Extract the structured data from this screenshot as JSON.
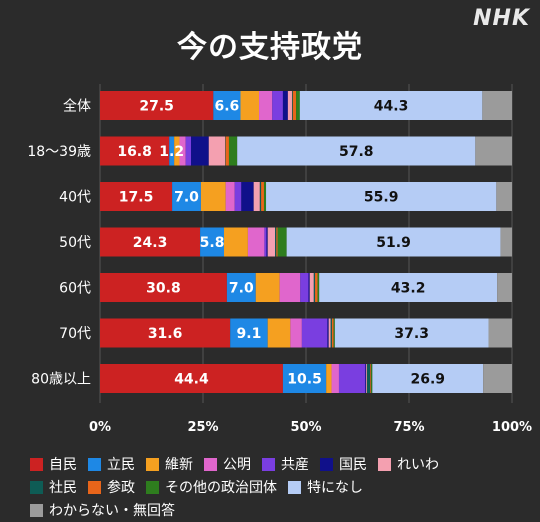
{
  "title": "今の支持政党",
  "logo": "NHK",
  "chart_data": {
    "type": "bar",
    "orientation": "horizontal",
    "stacked": true,
    "title": "今の支持政党",
    "categories": [
      "全体",
      "18～39歳",
      "40代",
      "50代",
      "60代",
      "70代",
      "80歳以上"
    ],
    "xlim": [
      0,
      100
    ],
    "x_ticks": [
      "0%",
      "25%",
      "50%",
      "75%",
      "100%"
    ],
    "grid": true,
    "legend_position": "bottom",
    "series": [
      {
        "name": "自民",
        "color": "#cc2222",
        "values": [
          27.5,
          16.8,
          17.5,
          24.3,
          30.8,
          31.6,
          44.4
        ],
        "labels": [
          "27.5",
          "16.8",
          "17.5",
          "24.3",
          "30.8",
          "31.6",
          "44.4"
        ]
      },
      {
        "name": "立民",
        "color": "#1e88e5",
        "values": [
          6.6,
          1.2,
          7.0,
          5.8,
          7.0,
          9.1,
          10.5
        ],
        "labels": [
          "6.6",
          "1.2",
          "7.0",
          "5.8",
          "7.0",
          "9.1",
          "10.5"
        ]
      },
      {
        "name": "維新",
        "color": "#f5a020",
        "values": [
          4.5,
          1.3,
          6.0,
          5.8,
          5.8,
          5.5,
          1.3
        ],
        "labels": [
          "",
          "",
          "",
          "",
          "",
          "",
          ""
        ]
      },
      {
        "name": "公明",
        "color": "#e066cc",
        "values": [
          3.2,
          1.5,
          2.2,
          4.0,
          5.0,
          2.8,
          1.8
        ],
        "labels": [
          "",
          "",
          "",
          "",
          "",
          "",
          ""
        ]
      },
      {
        "name": "共産",
        "color": "#7a3ee0",
        "values": [
          2.6,
          1.3,
          1.6,
          0.5,
          2.0,
          6.2,
          6.4
        ],
        "labels": [
          "",
          "",
          "",
          "",
          "",
          "",
          ""
        ]
      },
      {
        "name": "国民",
        "color": "#10108a",
        "values": [
          1.2,
          4.3,
          3.0,
          0.3,
          0.3,
          0.3,
          0.2
        ],
        "labels": [
          "",
          "",
          "",
          "",
          "",
          "",
          ""
        ]
      },
      {
        "name": "れいわ",
        "color": "#f4a0b0",
        "values": [
          1.0,
          4.0,
          1.5,
          1.8,
          1.0,
          0.5,
          0.2
        ],
        "labels": [
          "",
          "",
          "",
          "",
          "",
          "",
          ""
        ]
      },
      {
        "name": "社民",
        "color": "#0e5c55",
        "values": [
          0.2,
          0.1,
          0.3,
          0.3,
          0.3,
          0.3,
          0.8
        ],
        "labels": [
          "",
          "",
          "",
          "",
          "",
          "",
          ""
        ]
      },
      {
        "name": "参政",
        "color": "#e8651a",
        "values": [
          0.8,
          0.8,
          0.7,
          0.3,
          0.6,
          0.4,
          0.2
        ],
        "labels": [
          "",
          "",
          "",
          "",
          "",
          "",
          ""
        ]
      },
      {
        "name": "その他の政治団体",
        "color": "#2e7d1e",
        "values": [
          0.9,
          2.0,
          0.5,
          2.2,
          0.4,
          0.3,
          0.3
        ],
        "labels": [
          "",
          "",
          "",
          "",
          "",
          "",
          ""
        ]
      },
      {
        "name": "特になし",
        "color": "#b5ccf5",
        "values": [
          44.3,
          57.8,
          55.9,
          51.9,
          43.2,
          37.3,
          26.9
        ],
        "labels": [
          "44.3",
          "57.8",
          "55.9",
          "51.9",
          "43.2",
          "37.3",
          "26.9"
        ]
      },
      {
        "name": "わからない・無回答",
        "color": "#9b9b9b",
        "values": [
          7.2,
          8.9,
          3.8,
          2.8,
          3.6,
          5.7,
          7.0
        ],
        "labels": [
          "",
          "",
          "",
          "",
          "",
          "",
          ""
        ]
      }
    ]
  }
}
